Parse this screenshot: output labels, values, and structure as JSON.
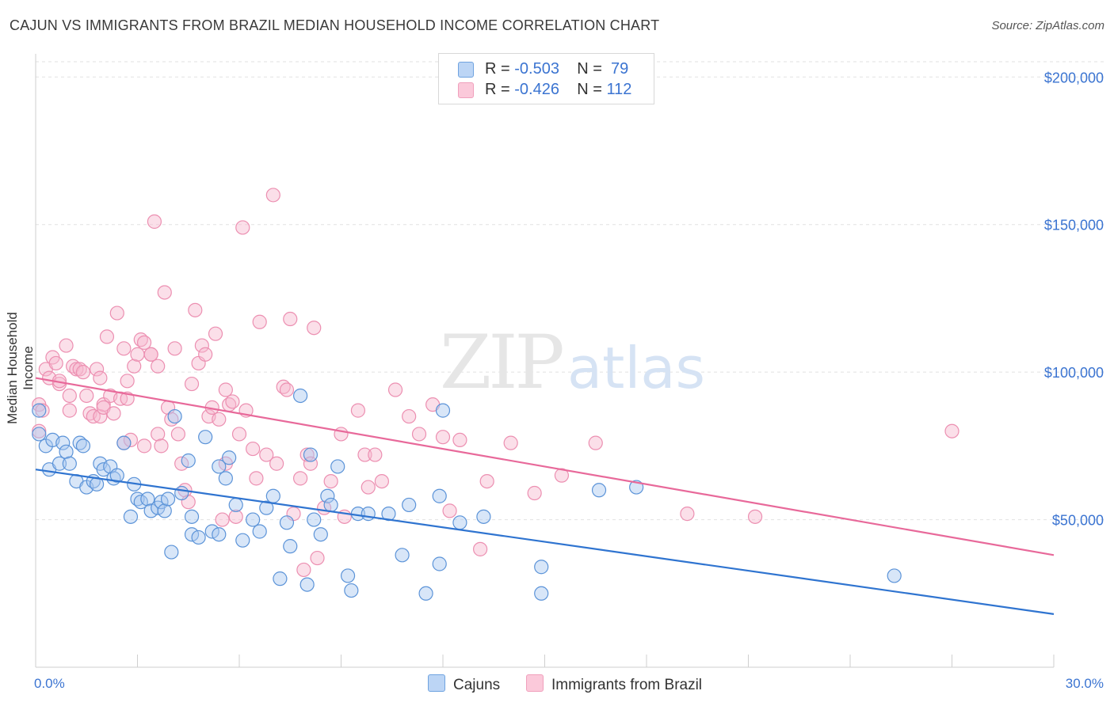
{
  "title": "CAJUN VS IMMIGRANTS FROM BRAZIL MEDIAN HOUSEHOLD INCOME CORRELATION CHART",
  "source": "Source: ZipAtlas.com",
  "watermark": {
    "zip": "ZIP",
    "atlas": "atlas"
  },
  "legend": {
    "rows": [
      {
        "r_label": "R = ",
        "r_value": "-0.503",
        "n_label": "N = ",
        "n_value": "79"
      },
      {
        "r_label": "R = ",
        "r_value": "-0.426",
        "n_label": "N = ",
        "n_value": "112"
      }
    ]
  },
  "bottom_legend": [
    "Cajuns",
    "Immigrants from Brazil"
  ],
  "chart_data": {
    "type": "scatter",
    "title": "CAJUN VS IMMIGRANTS FROM BRAZIL MEDIAN HOUSEHOLD INCOME CORRELATION CHART",
    "xlabel": "",
    "ylabel": "Median Household Income",
    "xlim": [
      0,
      30
    ],
    "ylim": [
      0,
      210000
    ],
    "x_tick_labels": [
      "0.0%",
      "30.0%"
    ],
    "y_tick_labels": [
      "$50,000",
      "$100,000",
      "$150,000",
      "$200,000"
    ],
    "y_ticks": [
      50000,
      100000,
      150000,
      200000
    ],
    "grid": "horizontal dashed",
    "legend_position": "top-center",
    "colors": {
      "Cajuns": "#6fa3e0",
      "Immigrants from Brazil": "#f0a0bc",
      "cajun_line": "#2f74d0",
      "brazil_line": "#e8699a"
    },
    "series": [
      {
        "name": "Cajuns",
        "r": -0.503,
        "n": 79,
        "trend": {
          "x": [
            0,
            30
          ],
          "y": [
            67000,
            18000
          ]
        },
        "points": [
          [
            0.1,
            79000
          ],
          [
            0.1,
            87000
          ],
          [
            0.3,
            75000
          ],
          [
            0.4,
            67000
          ],
          [
            0.5,
            77000
          ],
          [
            0.7,
            69000
          ],
          [
            0.8,
            76000
          ],
          [
            0.9,
            73000
          ],
          [
            1.0,
            69000
          ],
          [
            1.2,
            63000
          ],
          [
            1.3,
            76000
          ],
          [
            1.4,
            75000
          ],
          [
            1.5,
            61000
          ],
          [
            1.7,
            63000
          ],
          [
            1.8,
            62000
          ],
          [
            1.9,
            69000
          ],
          [
            2.0,
            67000
          ],
          [
            2.2,
            68000
          ],
          [
            2.3,
            64000
          ],
          [
            2.4,
            65000
          ],
          [
            2.6,
            76000
          ],
          [
            2.8,
            51000
          ],
          [
            2.9,
            62000
          ],
          [
            3.0,
            57000
          ],
          [
            3.1,
            56000
          ],
          [
            3.3,
            57000
          ],
          [
            3.4,
            53000
          ],
          [
            3.6,
            54000
          ],
          [
            3.7,
            56000
          ],
          [
            3.8,
            53000
          ],
          [
            3.9,
            57000
          ],
          [
            4.0,
            39000
          ],
          [
            4.1,
            85000
          ],
          [
            4.3,
            59000
          ],
          [
            4.5,
            70000
          ],
          [
            4.6,
            51000
          ],
          [
            4.6,
            45000
          ],
          [
            4.8,
            44000
          ],
          [
            5.0,
            78000
          ],
          [
            5.2,
            46000
          ],
          [
            5.4,
            45000
          ],
          [
            5.4,
            68000
          ],
          [
            5.6,
            64000
          ],
          [
            5.7,
            71000
          ],
          [
            5.9,
            55000
          ],
          [
            6.1,
            43000
          ],
          [
            6.4,
            50000
          ],
          [
            6.6,
            46000
          ],
          [
            6.8,
            54000
          ],
          [
            7.0,
            58000
          ],
          [
            7.2,
            30000
          ],
          [
            7.4,
            49000
          ],
          [
            7.5,
            41000
          ],
          [
            7.8,
            92000
          ],
          [
            8.0,
            28000
          ],
          [
            8.1,
            72000
          ],
          [
            8.2,
            50000
          ],
          [
            8.4,
            45000
          ],
          [
            8.6,
            58000
          ],
          [
            8.7,
            55000
          ],
          [
            8.9,
            68000
          ],
          [
            9.2,
            31000
          ],
          [
            9.3,
            26000
          ],
          [
            9.5,
            52000
          ],
          [
            9.8,
            52000
          ],
          [
            10.4,
            52000
          ],
          [
            10.8,
            38000
          ],
          [
            11.0,
            55000
          ],
          [
            11.5,
            25000
          ],
          [
            11.9,
            35000
          ],
          [
            12.0,
            87000
          ],
          [
            11.9,
            58000
          ],
          [
            12.5,
            49000
          ],
          [
            13.2,
            51000
          ],
          [
            14.9,
            34000
          ],
          [
            14.9,
            25000
          ],
          [
            16.6,
            60000
          ],
          [
            17.7,
            61000
          ],
          [
            25.3,
            31000
          ]
        ]
      },
      {
        "name": "Immigrants from Brazil",
        "r": -0.426,
        "n": 112,
        "trend": {
          "x": [
            0,
            30
          ],
          "y": [
            98000,
            38000
          ]
        },
        "points": [
          [
            0.1,
            89000
          ],
          [
            0.1,
            80000
          ],
          [
            0.2,
            87000
          ],
          [
            0.3,
            101000
          ],
          [
            0.4,
            98000
          ],
          [
            0.5,
            105000
          ],
          [
            0.6,
            103000
          ],
          [
            0.7,
            96000
          ],
          [
            0.9,
            109000
          ],
          [
            1.0,
            87000
          ],
          [
            1.0,
            92000
          ],
          [
            1.1,
            102000
          ],
          [
            1.2,
            101000
          ],
          [
            1.3,
            101000
          ],
          [
            1.4,
            100000
          ],
          [
            1.5,
            92000
          ],
          [
            1.6,
            86000
          ],
          [
            1.7,
            85000
          ],
          [
            1.8,
            101000
          ],
          [
            1.9,
            85000
          ],
          [
            2.0,
            89000
          ],
          [
            2.0,
            88000
          ],
          [
            2.1,
            112000
          ],
          [
            2.2,
            92000
          ],
          [
            2.3,
            86000
          ],
          [
            2.4,
            120000
          ],
          [
            2.5,
            91000
          ],
          [
            2.6,
            108000
          ],
          [
            2.6,
            76000
          ],
          [
            2.7,
            97000
          ],
          [
            2.7,
            91000
          ],
          [
            2.8,
            77000
          ],
          [
            2.9,
            102000
          ],
          [
            3.0,
            106000
          ],
          [
            3.1,
            111000
          ],
          [
            3.2,
            75000
          ],
          [
            3.2,
            110000
          ],
          [
            3.4,
            106000
          ],
          [
            3.5,
            151000
          ],
          [
            3.6,
            102000
          ],
          [
            3.6,
            79000
          ],
          [
            3.7,
            75000
          ],
          [
            3.8,
            127000
          ],
          [
            3.9,
            88000
          ],
          [
            4.0,
            84000
          ],
          [
            4.1,
            108000
          ],
          [
            4.2,
            79000
          ],
          [
            4.3,
            69000
          ],
          [
            4.4,
            60000
          ],
          [
            4.5,
            56000
          ],
          [
            4.6,
            96000
          ],
          [
            4.7,
            121000
          ],
          [
            4.8,
            103000
          ],
          [
            4.9,
            109000
          ],
          [
            5.0,
            106000
          ],
          [
            5.1,
            85000
          ],
          [
            5.2,
            88000
          ],
          [
            5.3,
            113000
          ],
          [
            5.4,
            84000
          ],
          [
            5.5,
            50000
          ],
          [
            5.6,
            69000
          ],
          [
            5.7,
            89000
          ],
          [
            5.8,
            90000
          ],
          [
            5.9,
            51000
          ],
          [
            6.0,
            79000
          ],
          [
            6.1,
            149000
          ],
          [
            6.2,
            87000
          ],
          [
            6.4,
            74000
          ],
          [
            6.5,
            64000
          ],
          [
            6.6,
            117000
          ],
          [
            6.8,
            72000
          ],
          [
            7.0,
            160000
          ],
          [
            7.1,
            69000
          ],
          [
            7.3,
            95000
          ],
          [
            7.4,
            94000
          ],
          [
            7.5,
            118000
          ],
          [
            7.6,
            52000
          ],
          [
            7.8,
            64000
          ],
          [
            7.9,
            33000
          ],
          [
            8.0,
            72000
          ],
          [
            8.1,
            69000
          ],
          [
            8.2,
            115000
          ],
          [
            8.3,
            37000
          ],
          [
            8.5,
            54000
          ],
          [
            8.7,
            63000
          ],
          [
            9.0,
            79000
          ],
          [
            9.1,
            51000
          ],
          [
            9.7,
            72000
          ],
          [
            9.8,
            61000
          ],
          [
            10.0,
            72000
          ],
          [
            10.2,
            63000
          ],
          [
            10.6,
            94000
          ],
          [
            11.0,
            85000
          ],
          [
            11.3,
            79000
          ],
          [
            11.7,
            89000
          ],
          [
            12.0,
            78000
          ],
          [
            12.2,
            53000
          ],
          [
            12.5,
            77000
          ],
          [
            13.1,
            40000
          ],
          [
            13.3,
            63000
          ],
          [
            14.0,
            76000
          ],
          [
            14.7,
            59000
          ],
          [
            15.5,
            65000
          ],
          [
            16.5,
            76000
          ],
          [
            19.2,
            52000
          ],
          [
            21.2,
            51000
          ],
          [
            27.0,
            80000
          ],
          [
            9.5,
            87000
          ],
          [
            5.6,
            94000
          ],
          [
            3.4,
            106000
          ],
          [
            1.9,
            98000
          ],
          [
            0.7,
            97000
          ]
        ]
      }
    ]
  }
}
